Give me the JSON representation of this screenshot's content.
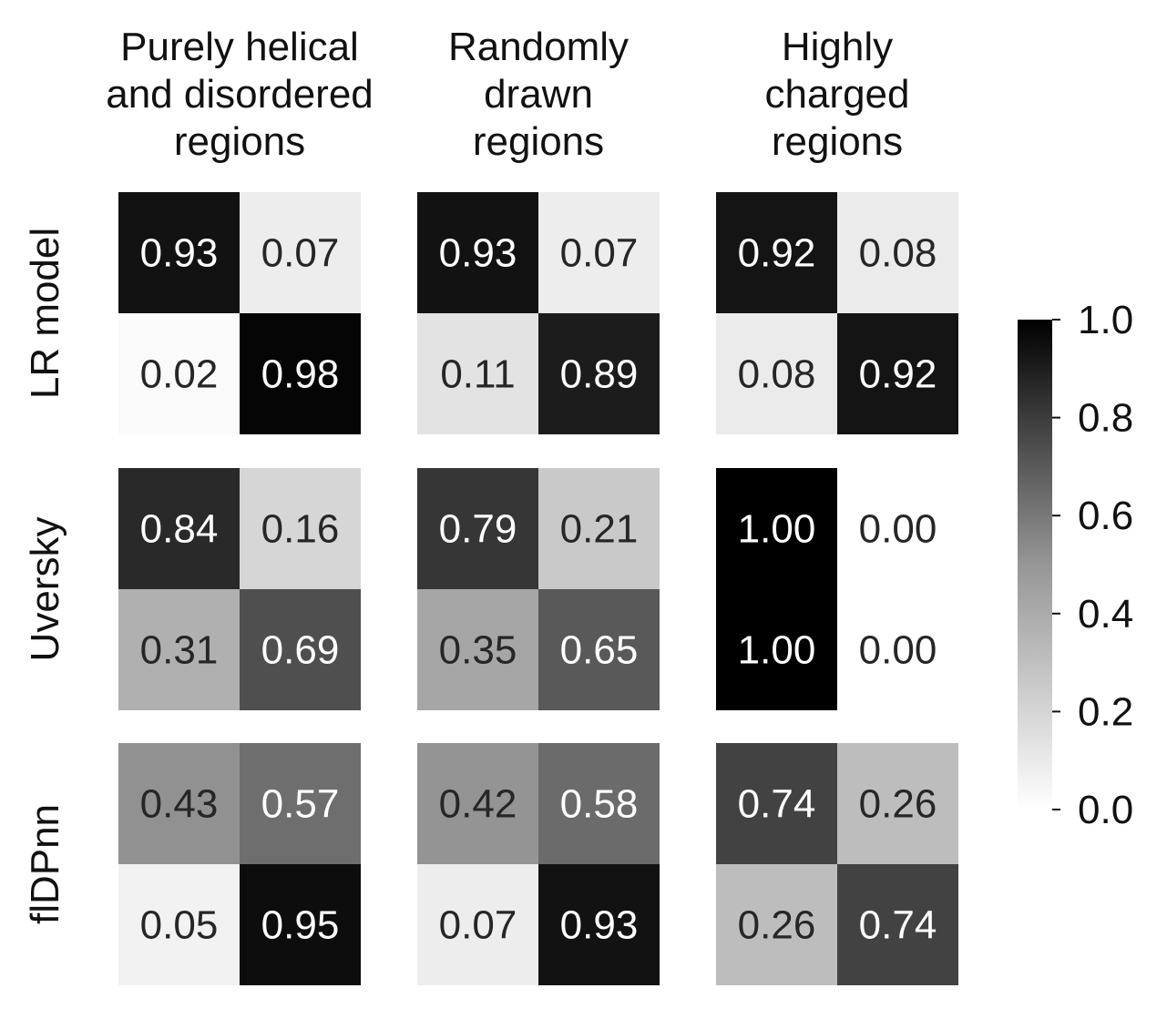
{
  "chart_data": {
    "type": "heatmap",
    "column_titles": [
      [
        "Purely helical",
        "and disordered",
        "regions"
      ],
      [
        "Randomly",
        "drawn",
        "regions"
      ],
      [
        "Highly",
        "charged",
        "regions"
      ]
    ],
    "row_labels": [
      "LR model",
      "Uversky",
      "flDPnn"
    ],
    "value_range": [
      0,
      1
    ],
    "colormap": "greys (0.0 = white, 1.0 = black)",
    "colorbar": {
      "placement": "right",
      "ticks": [
        "0.0",
        "0.2",
        "0.4",
        "0.6",
        "0.8",
        "1.0"
      ]
    },
    "matrices": [
      [
        {
          "values": [
            [
              0.93,
              0.07
            ],
            [
              0.02,
              0.98
            ]
          ],
          "labels": [
            [
              "0.93",
              "0.07"
            ],
            [
              "0.02",
              "0.98"
            ]
          ]
        },
        {
          "values": [
            [
              0.93,
              0.07
            ],
            [
              0.11,
              0.89
            ]
          ],
          "labels": [
            [
              "0.93",
              "0.07"
            ],
            [
              "0.11",
              "0.89"
            ]
          ]
        },
        {
          "values": [
            [
              0.92,
              0.08
            ],
            [
              0.08,
              0.92
            ]
          ],
          "labels": [
            [
              "0.92",
              "0.08"
            ],
            [
              "0.08",
              "0.92"
            ]
          ]
        }
      ],
      [
        {
          "values": [
            [
              0.84,
              0.16
            ],
            [
              0.31,
              0.69
            ]
          ],
          "labels": [
            [
              "0.84",
              "0.16"
            ],
            [
              "0.31",
              "0.69"
            ]
          ]
        },
        {
          "values": [
            [
              0.79,
              0.21
            ],
            [
              0.35,
              0.65
            ]
          ],
          "labels": [
            [
              "0.79",
              "0.21"
            ],
            [
              "0.35",
              "0.65"
            ]
          ]
        },
        {
          "values": [
            [
              1.0,
              0.0
            ],
            [
              1.0,
              0.0
            ]
          ],
          "labels": [
            [
              "1.00",
              "0.00"
            ],
            [
              "1.00",
              "0.00"
            ]
          ]
        }
      ],
      [
        {
          "values": [
            [
              0.43,
              0.57
            ],
            [
              0.05,
              0.95
            ]
          ],
          "labels": [
            [
              "0.43",
              "0.57"
            ],
            [
              "0.05",
              "0.95"
            ]
          ]
        },
        {
          "values": [
            [
              0.42,
              0.58
            ],
            [
              0.07,
              0.93
            ]
          ],
          "labels": [
            [
              "0.42",
              "0.58"
            ],
            [
              "0.07",
              "0.93"
            ]
          ]
        },
        {
          "values": [
            [
              0.74,
              0.26
            ],
            [
              0.26,
              0.74
            ]
          ],
          "labels": [
            [
              "0.74",
              "0.26"
            ],
            [
              "0.26",
              "0.74"
            ]
          ]
        }
      ]
    ]
  }
}
